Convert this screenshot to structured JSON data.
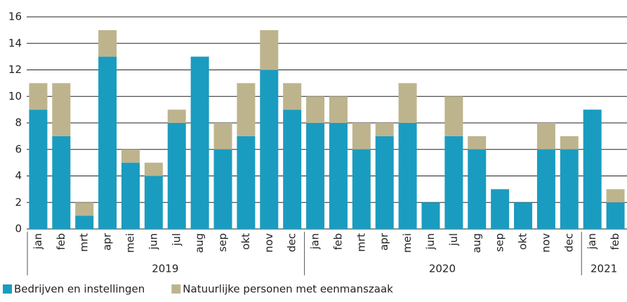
{
  "chart_data": {
    "type": "bar",
    "stacked": true,
    "groups": [
      {
        "label": "2019",
        "categories": [
          "jan",
          "feb",
          "mrt",
          "apr",
          "mei",
          "jun",
          "jul",
          "aug",
          "sep",
          "okt",
          "nov",
          "dec"
        ]
      },
      {
        "label": "2020",
        "categories": [
          "jan",
          "feb",
          "mrt",
          "apr",
          "mei",
          "jun",
          "jul",
          "aug",
          "sep",
          "okt",
          "nov",
          "dec"
        ]
      },
      {
        "label": "2021",
        "categories": [
          "jan",
          "feb"
        ]
      }
    ],
    "series": [
      {
        "name": "Bedrijven en instellingen",
        "color": "#1a9cc0",
        "values": [
          9,
          7,
          1,
          13,
          5,
          4,
          8,
          13,
          6,
          7,
          12,
          9,
          8,
          8,
          6,
          7,
          8,
          2,
          7,
          6,
          3,
          2,
          6,
          6,
          9,
          2
        ]
      },
      {
        "name": "Natuurlijke personen met eenmanszaak",
        "color": "#bdb48e",
        "values": [
          2,
          4,
          1,
          2,
          1,
          1,
          1,
          0,
          2,
          4,
          3,
          2,
          2,
          2,
          2,
          1,
          3,
          0,
          3,
          1,
          0,
          0,
          2,
          1,
          0,
          1
        ]
      }
    ],
    "ylim": [
      0,
      16
    ],
    "yticks": [
      0,
      2,
      4,
      6,
      8,
      10,
      12,
      14,
      16
    ],
    "grid": true,
    "legend": "bottom-left"
  }
}
